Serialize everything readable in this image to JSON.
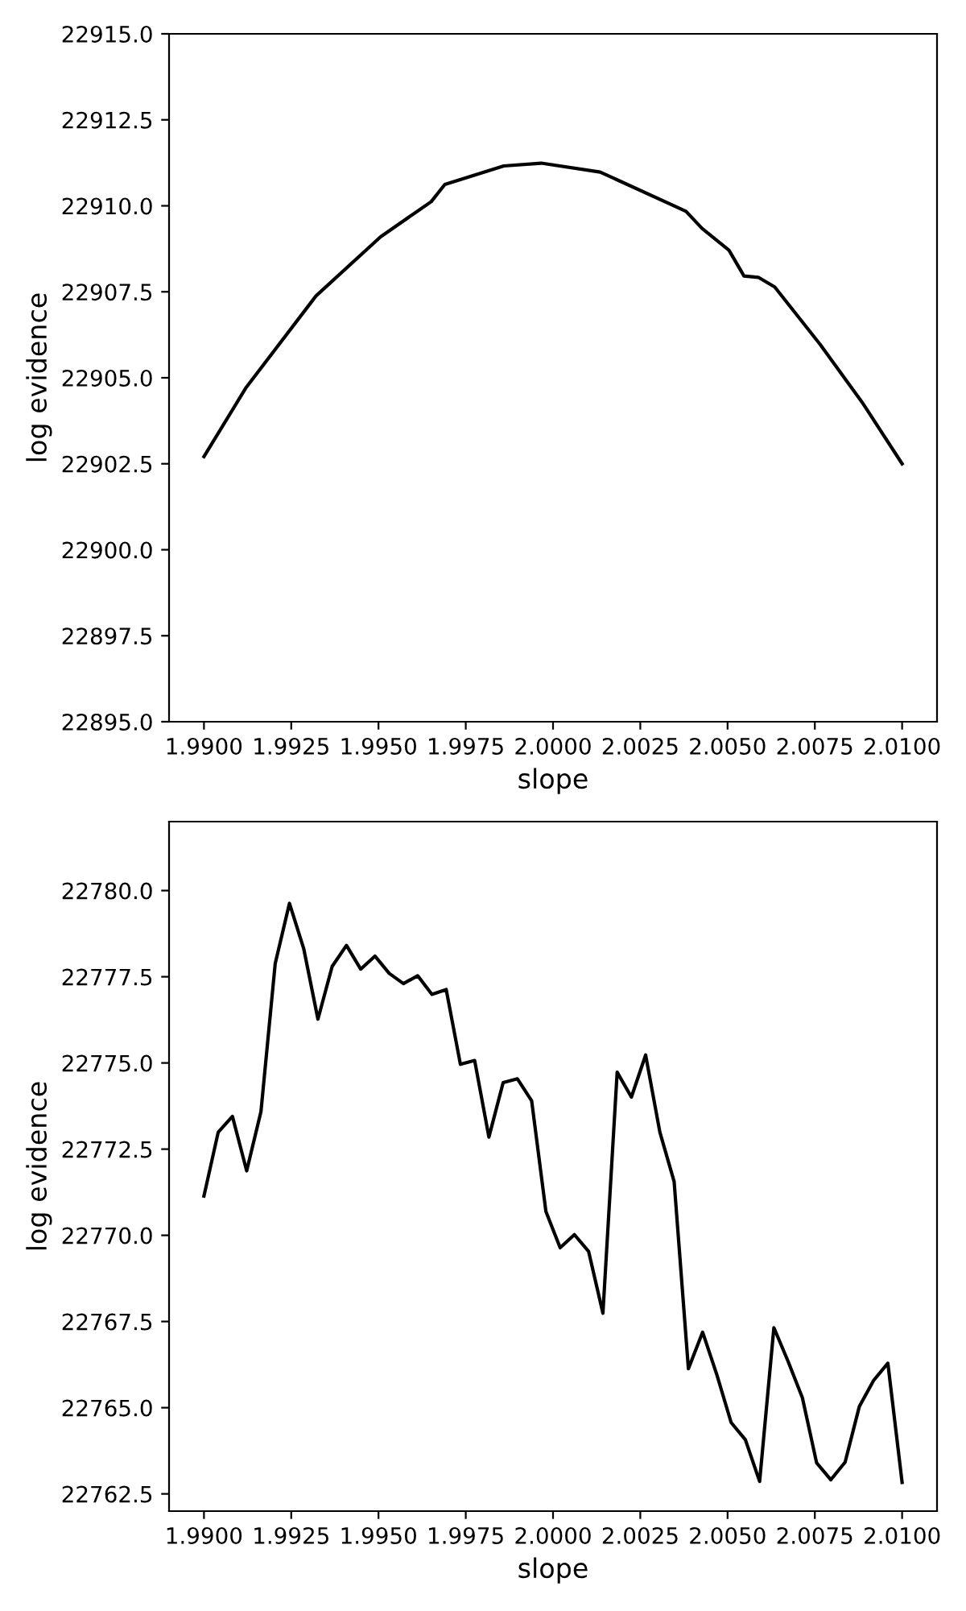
{
  "chart_data": [
    {
      "type": "line",
      "xlabel": "slope",
      "ylabel": "log evidence",
      "xlim": [
        1.989,
        2.011
      ],
      "ylim": [
        22895,
        22915
      ],
      "xticks": [
        {
          "value": 1.99,
          "label": "1.9900"
        },
        {
          "value": 1.9925,
          "label": "1.9925"
        },
        {
          "value": 1.995,
          "label": "1.9950"
        },
        {
          "value": 1.9975,
          "label": "1.9975"
        },
        {
          "value": 2.0,
          "label": "2.0000"
        },
        {
          "value": 2.0025,
          "label": "2.0025"
        },
        {
          "value": 2.005,
          "label": "2.0050"
        },
        {
          "value": 2.0075,
          "label": "2.0075"
        },
        {
          "value": 2.01,
          "label": "2.0100"
        }
      ],
      "yticks": [
        {
          "value": 22895,
          "label": "22895.0"
        },
        {
          "value": 22897.5,
          "label": "22897.5"
        },
        {
          "value": 22900,
          "label": "22900.0"
        },
        {
          "value": 22902.5,
          "label": "22902.5"
        },
        {
          "value": 22905,
          "label": "22905.0"
        },
        {
          "value": 22907.5,
          "label": "22907.5"
        },
        {
          "value": 22910,
          "label": "22910.0"
        },
        {
          "value": 22912.5,
          "label": "22912.5"
        },
        {
          "value": 22915,
          "label": "22915.0"
        }
      ],
      "grid": false,
      "legend": false,
      "marker": "none",
      "line_style": "solid",
      "x": [
        1.99,
        1.99121,
        1.99321,
        1.99506,
        1.99651,
        1.9969,
        1.99859,
        1.99966,
        2.00135,
        2.00381,
        2.00427,
        2.00504,
        2.00547,
        2.00588,
        2.00635,
        2.00765,
        2.00888,
        2.01
      ],
      "series": [
        {
          "color": "#000000",
          "values": [
            22902.71,
            22904.72,
            22907.38,
            22909.1,
            22910.12,
            22910.62,
            22911.16,
            22911.24,
            22910.98,
            22909.84,
            22909.34,
            22908.71,
            22907.96,
            22907.92,
            22907.64,
            22905.97,
            22904.25,
            22902.5
          ]
        }
      ]
    },
    {
      "type": "line",
      "xlabel": "slope",
      "ylabel": "log evidence",
      "xlim": [
        1.989,
        2.011
      ],
      "ylim": [
        22762.0,
        22782.0
      ],
      "xticks": [
        {
          "value": 1.99,
          "label": "1.9900"
        },
        {
          "value": 1.9925,
          "label": "1.9925"
        },
        {
          "value": 1.995,
          "label": "1.9950"
        },
        {
          "value": 1.9975,
          "label": "1.9975"
        },
        {
          "value": 2.0,
          "label": "2.0000"
        },
        {
          "value": 2.0025,
          "label": "2.0025"
        },
        {
          "value": 2.005,
          "label": "2.0050"
        },
        {
          "value": 2.0075,
          "label": "2.0075"
        },
        {
          "value": 2.01,
          "label": "2.0100"
        }
      ],
      "yticks": [
        {
          "value": 22762.5,
          "label": "22762.5"
        },
        {
          "value": 22765,
          "label": "22765.0"
        },
        {
          "value": 22767.5,
          "label": "22767.5"
        },
        {
          "value": 22770,
          "label": "22770.0"
        },
        {
          "value": 22772.5,
          "label": "22772.5"
        },
        {
          "value": 22775,
          "label": "22775.0"
        },
        {
          "value": 22777.5,
          "label": "22777.5"
        },
        {
          "value": 22780,
          "label": "22780.0"
        }
      ],
      "grid": false,
      "legend": false,
      "marker": "none",
      "line_style": "solid",
      "x": [
        1.99,
        1.990408,
        1.990816,
        1.991224,
        1.991633,
        1.992041,
        1.992449,
        1.992857,
        1.993265,
        1.993673,
        1.994082,
        1.99449,
        1.994898,
        1.995306,
        1.995714,
        1.996122,
        1.996531,
        1.996939,
        1.997347,
        1.997755,
        1.998163,
        1.998571,
        1.99898,
        1.999388,
        1.999796,
        2.000204,
        2.000612,
        2.00102,
        2.001429,
        2.001837,
        2.002245,
        2.002653,
        2.003061,
        2.003469,
        2.003878,
        2.004286,
        2.004694,
        2.005102,
        2.00551,
        2.005918,
        2.006327,
        2.006735,
        2.007143,
        2.007551,
        2.007959,
        2.008367,
        2.008776,
        2.009184,
        2.009592,
        2.01
      ],
      "series": [
        {
          "color": "#000000",
          "values": [
            22771.14,
            22772.99,
            22773.45,
            22771.87,
            22773.59,
            22777.88,
            22779.63,
            22778.32,
            22776.27,
            22777.8,
            22778.41,
            22777.72,
            22778.1,
            22777.6,
            22777.3,
            22777.53,
            22776.99,
            22777.13,
            22774.96,
            22775.07,
            22772.85,
            22774.43,
            22774.54,
            22773.9,
            22770.69,
            22769.64,
            22770.02,
            22769.53,
            22767.74,
            22774.73,
            22774.01,
            22775.23,
            22772.99,
            22771.56,
            22766.13,
            22767.19,
            22765.95,
            22764.57,
            22764.07,
            22762.86,
            22767.32,
            22766.34,
            22765.29,
            22763.4,
            22762.91,
            22763.42,
            22765.04,
            22765.79,
            22766.29,
            22762.83
          ]
        }
      ]
    }
  ]
}
